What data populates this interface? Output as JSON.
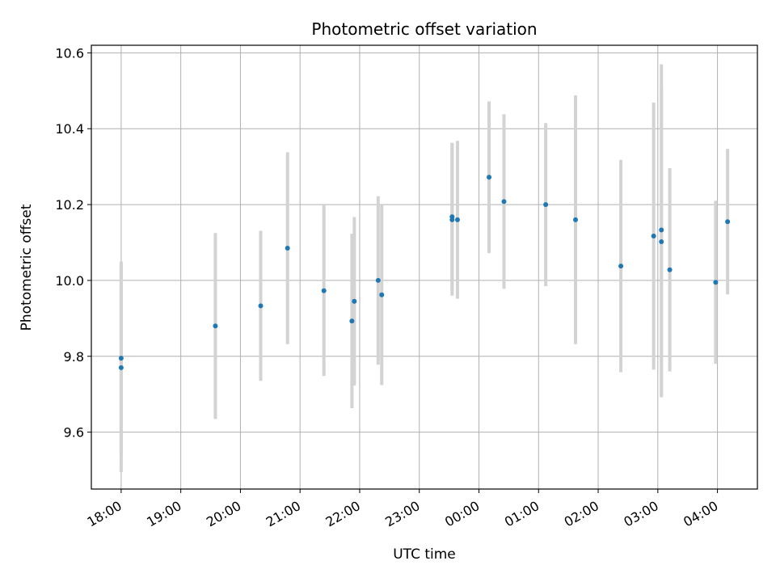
{
  "chart_data": {
    "type": "scatter",
    "title": "Photometric offset variation",
    "xlabel": "UTC time",
    "ylabel": "Photometric offset",
    "x_tick_labels": [
      "18:00",
      "19:00",
      "20:00",
      "21:00",
      "22:00",
      "23:00",
      "00:00",
      "01:00",
      "02:00",
      "03:00",
      "04:00"
    ],
    "x_tick_hours": [
      18,
      19,
      20,
      21,
      22,
      23,
      24,
      25,
      26,
      27,
      28
    ],
    "xlim_hours": [
      17.5,
      28.67
    ],
    "y_ticks": [
      9.6,
      9.8,
      10.0,
      10.2,
      10.4,
      10.6
    ],
    "y_tick_labels": [
      "9.6",
      "9.8",
      "10.0",
      "10.2",
      "10.4",
      "10.6"
    ],
    "ylim": [
      9.45,
      10.62
    ],
    "grid": true,
    "colors": {
      "point": "#1f77b4",
      "errorbar": "#d3d3d3",
      "grid": "#b0b0b0"
    },
    "points": [
      {
        "time": "18:00",
        "hour": 18.0,
        "y": 9.795,
        "err": 0.255
      },
      {
        "time": "18:00",
        "hour": 18.0,
        "y": 9.77,
        "err": 0.275
      },
      {
        "time": "19:35",
        "hour": 19.58,
        "y": 9.88,
        "err": 0.245
      },
      {
        "time": "20:20",
        "hour": 20.34,
        "y": 9.933,
        "err": 0.198
      },
      {
        "time": "20:47",
        "hour": 20.79,
        "y": 10.085,
        "err": 0.253
      },
      {
        "time": "21:24",
        "hour": 21.4,
        "y": 9.973,
        "err": 0.225
      },
      {
        "time": "21:52",
        "hour": 21.87,
        "y": 9.893,
        "err": 0.23
      },
      {
        "time": "21:54",
        "hour": 21.91,
        "y": 9.945,
        "err": 0.222
      },
      {
        "time": "22:18",
        "hour": 22.31,
        "y": 10.0,
        "err": 0.222
      },
      {
        "time": "22:22",
        "hour": 22.37,
        "y": 9.962,
        "err": 0.238
      },
      {
        "time": "23:33",
        "hour": 23.55,
        "y": 10.168,
        "err": 0.195
      },
      {
        "time": "23:33",
        "hour": 23.55,
        "y": 10.16,
        "err": 0.2
      },
      {
        "time": "23:38",
        "hour": 23.64,
        "y": 10.16,
        "err": 0.208
      },
      {
        "time": "00:10",
        "hour": 24.17,
        "y": 10.272,
        "err": 0.2
      },
      {
        "time": "00:25",
        "hour": 24.42,
        "y": 10.208,
        "err": 0.23
      },
      {
        "time": "01:07",
        "hour": 25.12,
        "y": 10.2,
        "err": 0.215
      },
      {
        "time": "01:37",
        "hour": 25.62,
        "y": 10.16,
        "err": 0.328
      },
      {
        "time": "02:23",
        "hour": 26.38,
        "y": 10.038,
        "err": 0.28
      },
      {
        "time": "02:55",
        "hour": 26.93,
        "y": 10.117,
        "err": 0.352
      },
      {
        "time": "03:04",
        "hour": 27.06,
        "y": 10.133,
        "err": 0.437
      },
      {
        "time": "03:04",
        "hour": 27.06,
        "y": 10.102,
        "err": 0.41
      },
      {
        "time": "03:12",
        "hour": 27.2,
        "y": 10.028,
        "err": 0.268
      },
      {
        "time": "03:58",
        "hour": 27.97,
        "y": 9.995,
        "err": 0.215
      },
      {
        "time": "04:10",
        "hour": 28.17,
        "y": 10.155,
        "err": 0.192
      }
    ]
  }
}
